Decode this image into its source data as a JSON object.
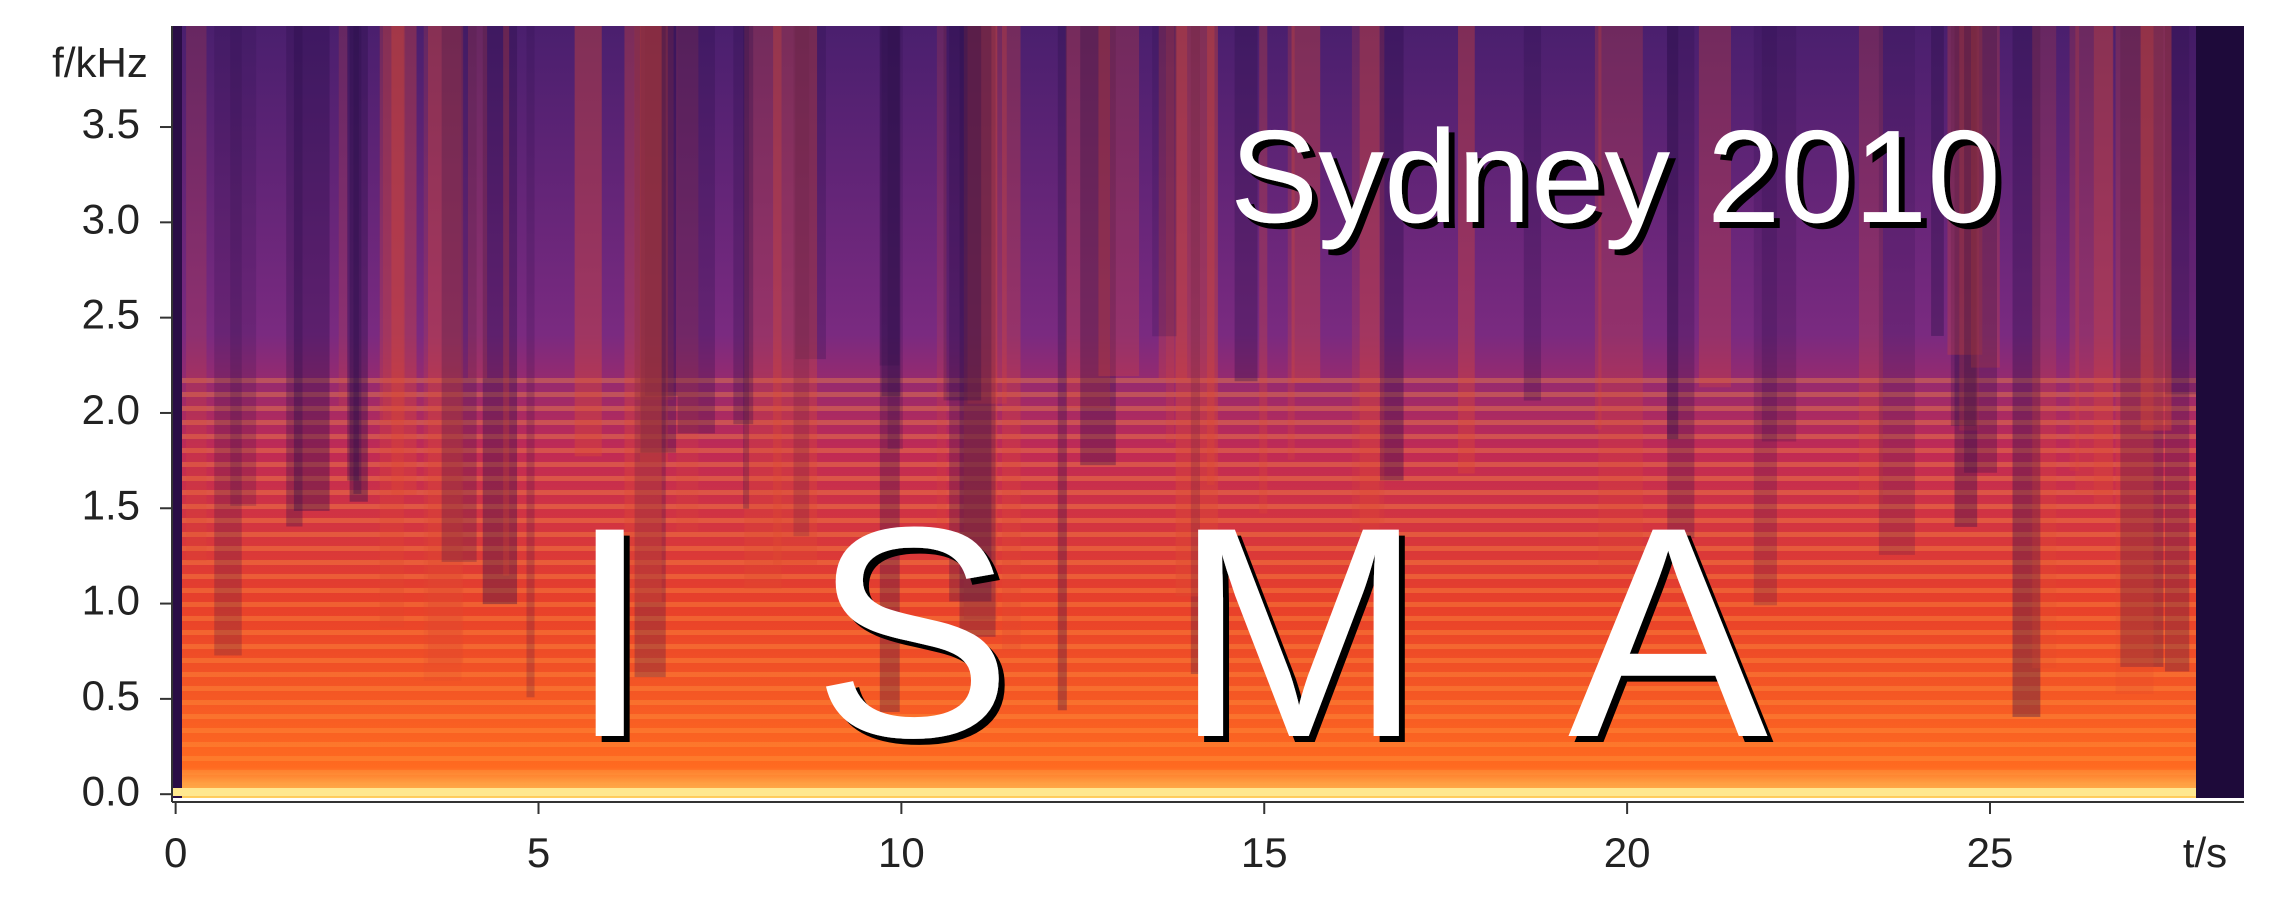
{
  "chart_data": {
    "type": "spectrogram",
    "annotations": [
      "Sydney 2010",
      "I S M A"
    ],
    "x_label": "t/s",
    "y_label": "f/kHz",
    "xlim": [
      -0.05,
      28.5
    ],
    "xticks": [
      0,
      5,
      10,
      15,
      20,
      25
    ],
    "ylim": [
      -0.02,
      4.03
    ],
    "yticks": [
      {
        "value": 0,
        "label": "0.0"
      },
      {
        "value": 0.5,
        "label": "0.5"
      },
      {
        "value": 1,
        "label": "1.0"
      },
      {
        "value": 1.5,
        "label": "1.5"
      },
      {
        "value": 2,
        "label": "2.0"
      },
      {
        "value": 2.5,
        "label": "2.5"
      },
      {
        "value": 3,
        "label": "3.0"
      },
      {
        "value": 3.5,
        "label": "3.5"
      }
    ]
  }
}
